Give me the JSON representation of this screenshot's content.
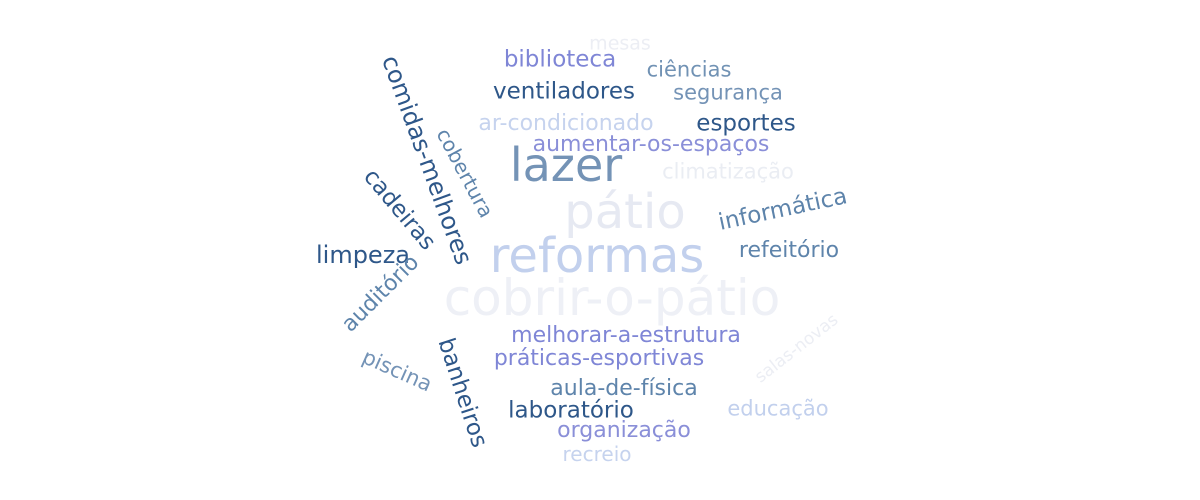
{
  "word_cloud": {
    "words": [
      {
        "text": "cobrir-o-pátio",
        "color": "#eef0f6"
      },
      {
        "text": "pátio",
        "color": "#e6e9f2"
      },
      {
        "text": "reformas",
        "color": "#c2d0ed"
      },
      {
        "text": "lazer",
        "color": "#7493b6"
      },
      {
        "text": "mesas",
        "color": "#eceef4"
      },
      {
        "text": "biblioteca",
        "color": "#7f86d6"
      },
      {
        "text": "ciências",
        "color": "#7192b4"
      },
      {
        "text": "ventiladores",
        "color": "#2e5789"
      },
      {
        "text": "segurança",
        "color": "#7493b6"
      },
      {
        "text": "ar-condicionado",
        "color": "#c6d3ee"
      },
      {
        "text": "esportes",
        "color": "#2e5789"
      },
      {
        "text": "aumentar-os-espaços",
        "color": "#8a8fd8"
      },
      {
        "text": "climatização",
        "color": "#eaedf3"
      },
      {
        "text": "informática",
        "color": "#5e84ab"
      },
      {
        "text": "refeitório",
        "color": "#5e84ab"
      },
      {
        "text": "limpeza",
        "color": "#2e5789"
      },
      {
        "text": "comidas-melhores",
        "color": "#2e5789"
      },
      {
        "text": "cobertura",
        "color": "#5e84ab"
      },
      {
        "text": "cadeiras",
        "color": "#2e5789"
      },
      {
        "text": "auditório",
        "color": "#5e84ab"
      },
      {
        "text": "melhorar-a-estrutura",
        "color": "#7f86d6"
      },
      {
        "text": "salas-novas",
        "color": "#eceef4"
      },
      {
        "text": "práticas-esportivas",
        "color": "#7f86d6"
      },
      {
        "text": "piscina",
        "color": "#7493b6"
      },
      {
        "text": "banheiros",
        "color": "#2e5789"
      },
      {
        "text": "aula-de-física",
        "color": "#5e84ab"
      },
      {
        "text": "laboratório",
        "color": "#2e5789"
      },
      {
        "text": "educação",
        "color": "#c2d0ed"
      },
      {
        "text": "organização",
        "color": "#8a8fd8"
      },
      {
        "text": "recreio",
        "color": "#c6d3ee"
      }
    ]
  }
}
